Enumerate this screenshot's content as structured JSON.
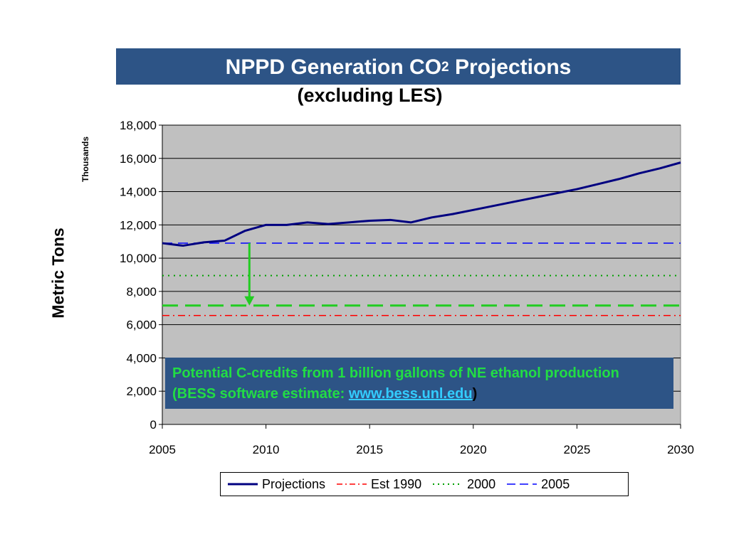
{
  "header": {
    "title_main": "NPPD Generation CO",
    "title_sub": "2",
    "title_tail": " Projections",
    "subtitle": "(excluding LES)"
  },
  "axes": {
    "ylabel": "Metric Tons",
    "yunit": "Thousands"
  },
  "callout": {
    "text": "Potential C-credits from 1 billion gallons of NE ethanol production (BESS software estimate: ",
    "link": "www.bess.unl.edu",
    "close": ")"
  },
  "colors": {
    "plot_bg": "#c0c0c0",
    "banner": "#2d5486",
    "projections": "#000080",
    "est1990": "#ff0000",
    "y2000": "#00a000",
    "y2005": "#0000ff",
    "arrow": "#22cc22"
  },
  "chart_data": {
    "type": "line",
    "title": "NPPD Generation CO2 Projections",
    "subtitle": "(excluding LES)",
    "xlabel": "",
    "ylabel": "Metric Tons",
    "yunit": "Thousands",
    "xlim": [
      2005,
      2030
    ],
    "ylim": [
      0,
      18000
    ],
    "xticks": [
      2005,
      2010,
      2015,
      2020,
      2025,
      2030
    ],
    "yticks": [
      0,
      2000,
      4000,
      6000,
      8000,
      10000,
      12000,
      14000,
      16000,
      18000
    ],
    "ytick_labels": [
      "0",
      "2,000",
      "4,000",
      "6,000",
      "8,000",
      "10,000",
      "12,000",
      "14,000",
      "16,000",
      "18,000"
    ],
    "xtick_labels": [
      "2005",
      "2010",
      "2015",
      "2020",
      "2025",
      "2030"
    ],
    "grid": "horizontal",
    "legend_position": "bottom",
    "series": [
      {
        "name": "Projections",
        "style": "solid",
        "x": [
          2005,
          2006,
          2007,
          2008,
          2009,
          2010,
          2011,
          2012,
          2013,
          2014,
          2015,
          2016,
          2017,
          2018,
          2019,
          2020,
          2021,
          2022,
          2023,
          2024,
          2025,
          2026,
          2027,
          2028,
          2029,
          2030
        ],
        "y": [
          10900,
          10750,
          10950,
          11050,
          11650,
          12000,
          12000,
          12150,
          12050,
          12150,
          12250,
          12300,
          12150,
          12450,
          12650,
          12900,
          13150,
          13400,
          13650,
          13900,
          14150,
          14450,
          14750,
          15100,
          15400,
          15750
        ]
      },
      {
        "name": "Est 1990",
        "style": "dashdot",
        "x": [
          2005,
          2030
        ],
        "y": [
          6550,
          6550
        ]
      },
      {
        "name": "2000",
        "style": "dotted",
        "x": [
          2005,
          2030
        ],
        "y": [
          8950,
          8950
        ]
      },
      {
        "name": "2005",
        "style": "dashed",
        "x": [
          2005,
          2030
        ],
        "y": [
          10900,
          10900
        ]
      }
    ],
    "annotations": [
      {
        "type": "arrow",
        "x": 2009.2,
        "from_y": 10900,
        "to_y": 7150
      },
      {
        "type": "hline",
        "style": "long-dashed",
        "y": 7150
      }
    ]
  }
}
